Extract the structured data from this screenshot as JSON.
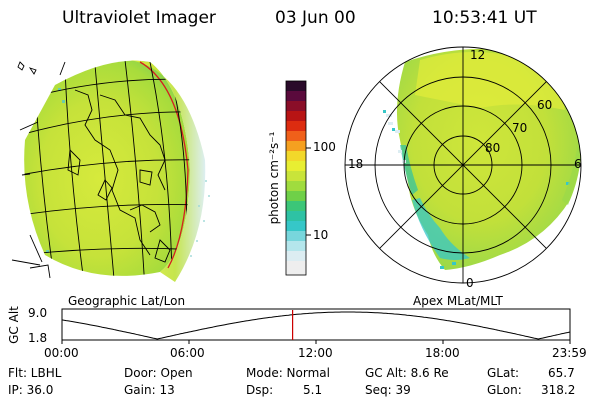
{
  "header": {
    "title": "Ultraviolet Imager",
    "date": "03 Jun 00",
    "time": "10:53:41 UT"
  },
  "colorbar": {
    "unit_label": "photon cm⁻²s⁻¹",
    "tick_100": "100",
    "tick_10": "10"
  },
  "panels": {
    "left_label": "Geographic Lat/Lon",
    "right_label": "Apex MLat/MLT"
  },
  "polar": {
    "mlt_labels": {
      "top": "12",
      "left": "18",
      "right": "6",
      "bottom": "0"
    },
    "lat_labels": [
      "60",
      "70",
      "80"
    ]
  },
  "altitude_plot": {
    "ylabel": "GC Alt",
    "y_ticks": [
      "9.0",
      "1.8"
    ],
    "x_ticks": [
      "00:00",
      "06:00",
      "12:00",
      "18:00",
      "23:59"
    ],
    "marker_time_hours": 10.895,
    "curve_color": "#000000",
    "marker_color": "#cc0000"
  },
  "info": {
    "flt": "Flt: LBHL",
    "ip": "IP: 36.0",
    "door": "Door: Open",
    "gain": "Gain: 13",
    "mode": "Mode: Normal",
    "dsp_label": "Dsp:",
    "dsp_value": "5.1",
    "gcalt": "GC Alt: 8.6 Re",
    "seq": "Seq: 39",
    "glat_label": "GLat:",
    "glat_value": "65.7",
    "glon_label": "GLon:",
    "glon_value": "318.2"
  },
  "colors": {
    "emission_main": "#c9e43a",
    "emission_bright": "#e9f03a",
    "emission_low": "#36c7c8",
    "limb_red": "#d42020"
  }
}
